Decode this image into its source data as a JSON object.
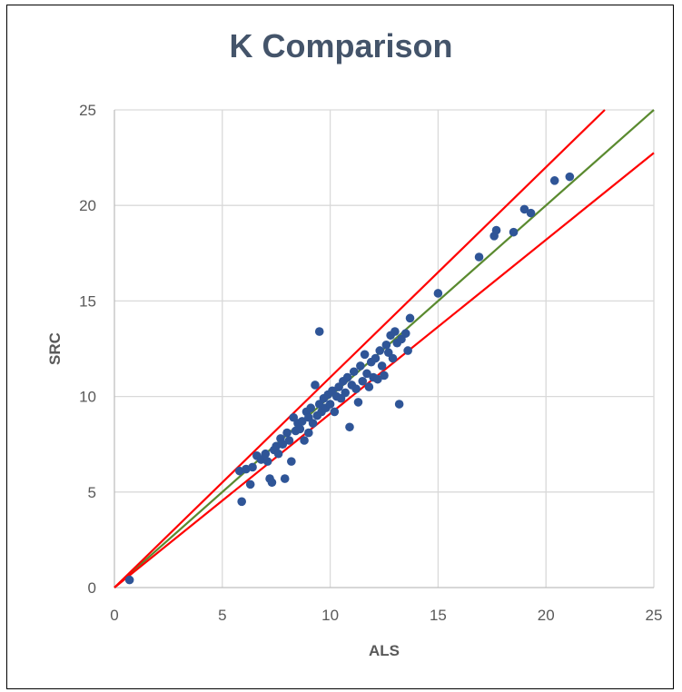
{
  "chart_data": {
    "type": "scatter",
    "title": "K Comparison",
    "xlabel": "ALS",
    "ylabel": "SRC",
    "xlim": [
      0,
      25
    ],
    "ylim": [
      0,
      25
    ],
    "xticks": [
      "0",
      "5",
      "10",
      "15",
      "20",
      "25"
    ],
    "yticks": [
      "0",
      "5",
      "10",
      "15",
      "20",
      "25"
    ],
    "grid": true,
    "legend": "none",
    "colors": {
      "points": "#2f5597",
      "identity_line": "#5a8a2f",
      "bound_lines": "#ff0000",
      "grid": "#d9d9d9"
    },
    "reference_lines": [
      {
        "kind": "identity",
        "slope": 1.0
      },
      {
        "kind": "upper-bound",
        "slope": 1.1
      },
      {
        "kind": "lower-bound",
        "slope": 0.91
      }
    ],
    "points": [
      [
        0.7,
        0.4
      ],
      [
        5.8,
        6.1
      ],
      [
        5.9,
        4.5
      ],
      [
        6.1,
        6.2
      ],
      [
        6.3,
        5.4
      ],
      [
        6.4,
        6.3
      ],
      [
        6.6,
        6.9
      ],
      [
        6.8,
        6.7
      ],
      [
        7.0,
        7.0
      ],
      [
        7.1,
        6.6
      ],
      [
        7.2,
        5.7
      ],
      [
        7.3,
        5.5
      ],
      [
        7.4,
        7.2
      ],
      [
        7.5,
        7.4
      ],
      [
        7.6,
        7.0
      ],
      [
        7.7,
        7.8
      ],
      [
        7.8,
        7.5
      ],
      [
        7.9,
        5.7
      ],
      [
        8.0,
        8.1
      ],
      [
        8.1,
        7.7
      ],
      [
        8.2,
        6.6
      ],
      [
        8.3,
        8.9
      ],
      [
        8.4,
        8.2
      ],
      [
        8.5,
        8.6
      ],
      [
        8.6,
        8.3
      ],
      [
        8.7,
        8.7
      ],
      [
        8.8,
        7.7
      ],
      [
        8.9,
        9.2
      ],
      [
        9.0,
        8.1
      ],
      [
        9.0,
        8.9
      ],
      [
        9.1,
        9.4
      ],
      [
        9.2,
        8.6
      ],
      [
        9.3,
        10.6
      ],
      [
        9.4,
        9.0
      ],
      [
        9.5,
        13.4
      ],
      [
        9.5,
        9.6
      ],
      [
        9.6,
        9.2
      ],
      [
        9.7,
        9.9
      ],
      [
        9.8,
        9.4
      ],
      [
        9.9,
        10.1
      ],
      [
        10.0,
        9.6
      ],
      [
        10.1,
        10.3
      ],
      [
        10.2,
        9.2
      ],
      [
        10.3,
        10.0
      ],
      [
        10.4,
        10.5
      ],
      [
        10.5,
        9.9
      ],
      [
        10.6,
        10.8
      ],
      [
        10.7,
        10.2
      ],
      [
        10.8,
        11.0
      ],
      [
        10.9,
        8.4
      ],
      [
        11.0,
        10.6
      ],
      [
        11.1,
        11.3
      ],
      [
        11.2,
        10.4
      ],
      [
        11.3,
        9.7
      ],
      [
        11.4,
        11.6
      ],
      [
        11.5,
        10.8
      ],
      [
        11.6,
        12.2
      ],
      [
        11.7,
        11.2
      ],
      [
        11.8,
        10.5
      ],
      [
        11.9,
        11.8
      ],
      [
        12.0,
        11.0
      ],
      [
        12.1,
        12.0
      ],
      [
        12.2,
        10.9
      ],
      [
        12.3,
        12.4
      ],
      [
        12.4,
        11.6
      ],
      [
        12.5,
        11.1
      ],
      [
        12.6,
        12.7
      ],
      [
        12.7,
        12.3
      ],
      [
        12.8,
        13.2
      ],
      [
        12.9,
        12.0
      ],
      [
        13.0,
        13.4
      ],
      [
        13.1,
        12.8
      ],
      [
        13.2,
        9.6
      ],
      [
        13.3,
        13.0
      ],
      [
        13.5,
        13.3
      ],
      [
        13.6,
        12.4
      ],
      [
        13.7,
        14.1
      ],
      [
        15.0,
        15.4
      ],
      [
        16.9,
        17.3
      ],
      [
        17.6,
        18.4
      ],
      [
        17.7,
        18.7
      ],
      [
        18.5,
        18.6
      ],
      [
        19.0,
        19.8
      ],
      [
        19.3,
        19.6
      ],
      [
        20.4,
        21.3
      ],
      [
        21.1,
        21.5
      ]
    ]
  }
}
